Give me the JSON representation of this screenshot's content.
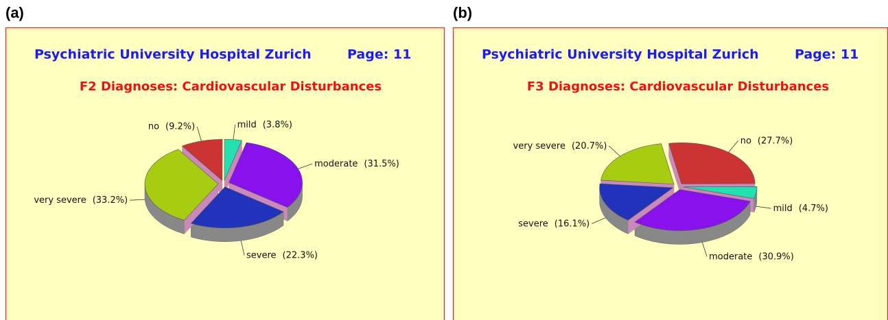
{
  "chart_data": [
    {
      "type": "pie",
      "panel": "(a)",
      "header": "Psychiatric University Hospital Zurich",
      "page": "Page:  11",
      "title": "F2 Diagnoses: Cardiovascular Disturbances",
      "categories": [
        "no",
        "mild",
        "moderate",
        "severe",
        "very severe"
      ],
      "values": [
        9.2,
        3.8,
        31.5,
        22.3,
        33.2
      ],
      "value_labels": [
        "(9.2%)",
        "(3.8%)",
        "(31.5%)",
        "(22.3%)",
        "(33.2%)"
      ],
      "colors": [
        "#cc3333",
        "#22e0b0",
        "#8811ee",
        "#2233bb",
        "#a8cc11"
      ]
    },
    {
      "type": "pie",
      "panel": "(b)",
      "header": "Psychiatric University Hospital Zurich",
      "page": "Page:  11",
      "title": "F3 Diagnoses: Cardiovascular Disturbances",
      "categories": [
        "no",
        "mild",
        "moderate",
        "severe",
        "very severe"
      ],
      "values": [
        27.7,
        4.7,
        30.9,
        16.1,
        20.7
      ],
      "value_labels": [
        "(27.7%)",
        "(4.7%)",
        "(30.9%)",
        "(16.1%)",
        "(20.7%)"
      ],
      "colors": [
        "#cc3333",
        "#22e0b0",
        "#8811ee",
        "#2233bb",
        "#a8cc11"
      ]
    }
  ]
}
